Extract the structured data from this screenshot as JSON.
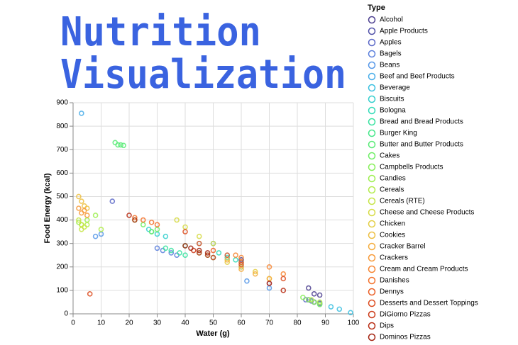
{
  "chart_data": {
    "type": "scatter",
    "title": [
      "Nutrition",
      "Visualization"
    ],
    "x_label": "Water (g)",
    "y_label": "Food Energy (kcal)",
    "legend_title": "Type",
    "xlim": [
      0,
      100
    ],
    "xticks": [
      0,
      10,
      20,
      30,
      40,
      50,
      60,
      70,
      80,
      90,
      100
    ],
    "ylim": [
      0,
      900
    ],
    "yticks": [
      0,
      100,
      200,
      300,
      400,
      500,
      600,
      700,
      800,
      900
    ],
    "grid": true,
    "series": [
      {
        "name": "Alcohol",
        "color": "#4c3f8f",
        "x": [
          60,
          84,
          86,
          88
        ],
        "values": [
          230,
          110,
          85,
          80
        ]
      },
      {
        "name": "Apple Products",
        "color": "#5050a8",
        "x": [
          86,
          88,
          84,
          70
        ],
        "values": [
          50,
          45,
          60,
          130
        ]
      },
      {
        "name": "Apples",
        "color": "#5a67c7",
        "x": [
          85,
          86,
          14,
          83
        ],
        "values": [
          55,
          50,
          480,
          60
        ]
      },
      {
        "name": "Bagels",
        "color": "#5b7fdc",
        "x": [
          32,
          35,
          30,
          37
        ],
        "values": [
          270,
          260,
          280,
          250
        ]
      },
      {
        "name": "Beans",
        "color": "#5597e8",
        "x": [
          62,
          70,
          10,
          8
        ],
        "values": [
          140,
          110,
          340,
          330
        ]
      },
      {
        "name": "Beef and Beef Products",
        "color": "#48ade9",
        "x": [
          55,
          60,
          50,
          45,
          3
        ],
        "values": [
          250,
          200,
          300,
          300,
          855
        ]
      },
      {
        "name": "Beverage",
        "color": "#3bc0e0",
        "x": [
          88,
          92,
          95,
          99
        ],
        "values": [
          40,
          30,
          20,
          5
        ]
      },
      {
        "name": "Biscuits",
        "color": "#34cfce",
        "x": [
          28,
          30,
          33,
          27
        ],
        "values": [
          350,
          340,
          330,
          360
        ]
      },
      {
        "name": "Bologna",
        "color": "#32dbb8",
        "x": [
          55,
          58,
          52,
          60
        ],
        "values": [
          240,
          230,
          260,
          220
        ]
      },
      {
        "name": "Bread and Bread Products",
        "color": "#38e2a0",
        "x": [
          35,
          38,
          40,
          33
        ],
        "values": [
          270,
          260,
          250,
          280
        ]
      },
      {
        "name": "Burger King",
        "color": "#45e78a",
        "x": [
          45,
          50,
          40,
          48
        ],
        "values": [
          260,
          240,
          290,
          250
        ]
      },
      {
        "name": "Butter and Butter Products",
        "color": "#58eb76",
        "x": [
          16,
          17,
          15,
          18
        ],
        "values": [
          720,
          720,
          730,
          718
        ]
      },
      {
        "name": "Cakes",
        "color": "#6eee65",
        "x": [
          25,
          30,
          22,
          28
        ],
        "values": [
          380,
          360,
          400,
          350
        ]
      },
      {
        "name": "Campbells Products",
        "color": "#86ef58",
        "x": [
          84,
          86,
          82,
          88
        ],
        "values": [
          60,
          50,
          70,
          40
        ]
      },
      {
        "name": "Candies",
        "color": "#9def50",
        "x": [
          5,
          3,
          8,
          2
        ],
        "values": [
          400,
          380,
          420,
          390
        ]
      },
      {
        "name": "Cereals",
        "color": "#b2ec4b",
        "x": [
          10,
          85,
          88,
          5
        ],
        "values": [
          360,
          60,
          50,
          380
        ]
      },
      {
        "name": "Cereals (RTE)",
        "color": "#c6e547",
        "x": [
          3,
          2,
          4,
          3
        ],
        "values": [
          380,
          400,
          370,
          360
        ]
      },
      {
        "name": "Cheese and Cheese Products",
        "color": "#d6db45",
        "x": [
          40,
          45,
          50,
          37
        ],
        "values": [
          370,
          330,
          300,
          400
        ]
      },
      {
        "name": "Chicken",
        "color": "#e3ce44",
        "x": [
          60,
          65,
          55,
          70
        ],
        "values": [
          200,
          180,
          220,
          150
        ]
      },
      {
        "name": "Cookies",
        "color": "#edbf42",
        "x": [
          3,
          4,
          5,
          2
        ],
        "values": [
          480,
          460,
          450,
          500
        ]
      },
      {
        "name": "Cracker Barrel",
        "color": "#f4ad3e",
        "x": [
          60,
          65,
          70,
          55
        ],
        "values": [
          190,
          170,
          150,
          230
        ]
      },
      {
        "name": "Crackers",
        "color": "#f79a39",
        "x": [
          3,
          4,
          5,
          2
        ],
        "values": [
          430,
          440,
          420,
          450
        ]
      },
      {
        "name": "Cream and Cream Products",
        "color": "#f78633",
        "x": [
          60,
          70,
          75,
          58
        ],
        "values": [
          240,
          200,
          170,
          250
        ]
      },
      {
        "name": "Danishes",
        "color": "#f3722c",
        "x": [
          25,
          30,
          22,
          28
        ],
        "values": [
          400,
          380,
          410,
          390
        ]
      },
      {
        "name": "Dennys",
        "color": "#ea5e25",
        "x": [
          50,
          55,
          60,
          45
        ],
        "values": [
          270,
          250,
          220,
          300
        ]
      },
      {
        "name": "Desserts and Dessert Toppings",
        "color": "#dd4c1f",
        "x": [
          6,
          40,
          60,
          75
        ],
        "values": [
          85,
          350,
          210,
          150
        ]
      },
      {
        "name": "DiGiorno Pizzas",
        "color": "#cc3b19",
        "x": [
          45,
          48,
          50,
          43
        ],
        "values": [
          260,
          250,
          240,
          270
        ]
      },
      {
        "name": "Dips",
        "color": "#b82d14",
        "x": [
          20,
          22,
          70,
          75
        ],
        "values": [
          420,
          400,
          130,
          100
        ]
      },
      {
        "name": "Dominos Pizzas",
        "color": "#a32310",
        "x": [
          40,
          45,
          48,
          42
        ],
        "values": [
          290,
          270,
          260,
          280
        ]
      }
    ]
  }
}
